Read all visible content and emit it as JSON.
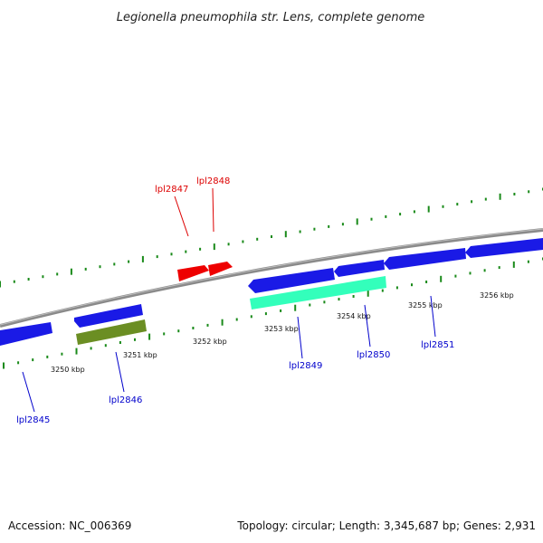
{
  "title": "Legionella pneumophila str. Lens, complete genome",
  "footer": {
    "accession": "Accession: NC_006369",
    "summary": "Topology: circular; Length: 3,345,687 bp; Genes: 2,931"
  },
  "colors": {
    "backbone": "#8a8a8a",
    "tick": "#1a8a1a",
    "label_red": "#dd0000",
    "label_blue": "#0000cc",
    "gene_red": "#ee0000",
    "gene_blue": "#1a1ae6",
    "gene_olive": "#6b8e23",
    "gene_teal": "#33ffbb"
  },
  "scale_labels": [
    "3250 kbp",
    "3251 kbp",
    "3252 kbp",
    "3253 kbp",
    "3254 kbp",
    "3255 kbp",
    "3256 kbp"
  ],
  "gene_labels": {
    "lpl2845": "lpl2845",
    "lpl2846": "lpl2846",
    "lpl2847": "lpl2847",
    "lpl2848": "lpl2848",
    "lpl2849": "lpl2849",
    "lpl2850": "lpl2850",
    "lpl2851": "lpl2851"
  }
}
